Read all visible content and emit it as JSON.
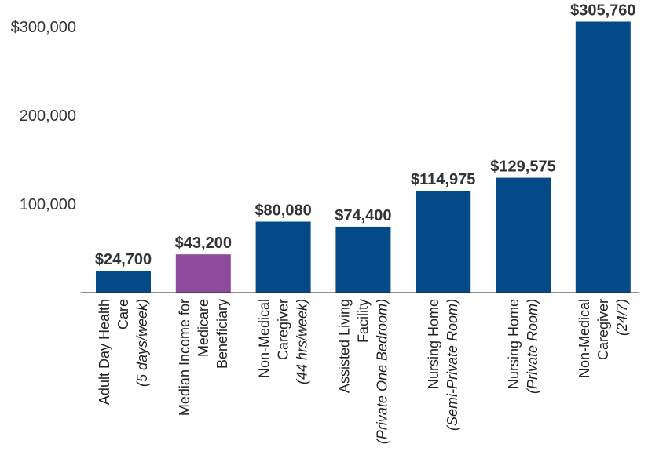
{
  "chart_data": {
    "type": "bar",
    "title": "",
    "xlabel": "",
    "ylabel": "",
    "ylim": [
      0,
      305760
    ],
    "yticks": [
      {
        "value": 100000,
        "label": "100,000"
      },
      {
        "value": 200000,
        "label": "200,000"
      },
      {
        "value": 300000,
        "label": "$300,000"
      }
    ],
    "grid": false,
    "categories": [
      {
        "lines": [
          "Adult Day Health",
          "Care"
        ],
        "italic": "(5 days/week)"
      },
      {
        "lines": [
          "Median Income for",
          "Medicare",
          "Beneficiary"
        ],
        "italic": ""
      },
      {
        "lines": [
          "Non-Medical",
          "Caregiver"
        ],
        "italic": "(44 hrs/week)"
      },
      {
        "lines": [
          "Assisted Living",
          "Facility"
        ],
        "italic": "(Private One Bedroom)"
      },
      {
        "lines": [
          "Nursing Home"
        ],
        "italic": "(Semi-Private Room)"
      },
      {
        "lines": [
          "Nursing Home"
        ],
        "italic": "(Private Room)"
      },
      {
        "lines": [
          "Non-Medical",
          "Caregiver"
        ],
        "italic": "(24/7)"
      }
    ],
    "values": [
      24700,
      43200,
      80080,
      74400,
      114975,
      129575,
      305760
    ],
    "value_labels": [
      "$24,700",
      "$43,200",
      "$80,080",
      "$74,400",
      "$114,975",
      "$129,575",
      "$305,760"
    ],
    "colors": [
      "#044a87",
      "#8e4a9c",
      "#044a87",
      "#044a87",
      "#044a87",
      "#044a87",
      "#044a87"
    ]
  }
}
